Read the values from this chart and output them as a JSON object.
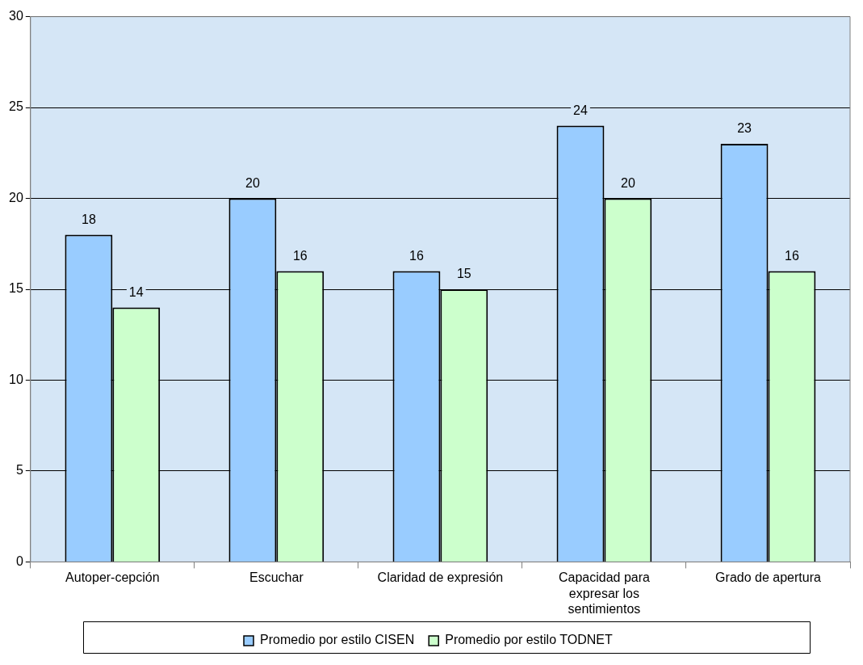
{
  "chart_data": {
    "type": "bar",
    "categories": [
      "Autoper-cepción",
      "Escuchar",
      "Claridad de expresión",
      "Capacidad para expresar los sentimientos",
      "Grado de apertura"
    ],
    "series": [
      {
        "name": "Promedio por estilo CISEN",
        "color": "#99ccff",
        "values": [
          18,
          20,
          16,
          24,
          23
        ]
      },
      {
        "name": "Promedio por estilo TODNET",
        "color": "#ccffcc",
        "values": [
          14,
          16,
          15,
          20,
          16
        ]
      }
    ],
    "ylim": [
      0,
      30
    ],
    "yticks": [
      0,
      5,
      10,
      15,
      20,
      25,
      30
    ],
    "grid": "y",
    "legend": "bottom",
    "data_labels": true
  }
}
